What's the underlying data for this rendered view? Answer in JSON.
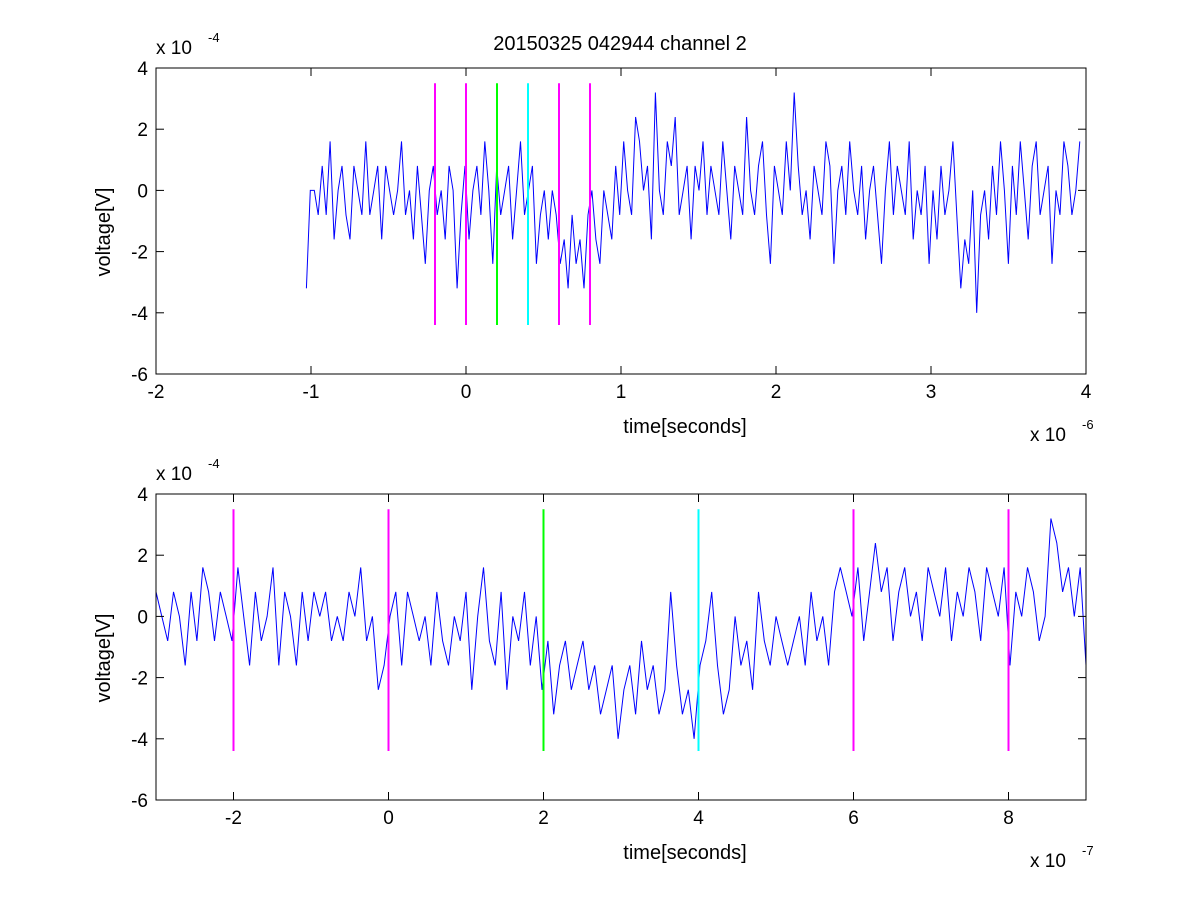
{
  "title": "20150325 042944 channel 2",
  "colors": {
    "signal": "#0000ff",
    "magenta": "#ff00ff",
    "green": "#00ff00",
    "cyan": "#00ffff",
    "axis": "#000000"
  },
  "chart_data": [
    {
      "type": "line",
      "title": "20150325 042944 channel 2",
      "xlabel": "time[seconds]",
      "ylabel": "voltage[V]",
      "x_multiplier_base": "x 10",
      "x_multiplier_exp": "-6",
      "y_multiplier_base": "x 10",
      "y_multiplier_exp": "-4",
      "xlim": [
        -2,
        4
      ],
      "ylim": [
        -6,
        4
      ],
      "xticks": [
        -2,
        -1,
        0,
        1,
        2,
        3,
        4
      ],
      "yticks": [
        -6,
        -4,
        -2,
        0,
        2,
        4
      ],
      "grid": false,
      "signal_xrange": [
        -1.03,
        3.96
      ],
      "signal_y_samples": [
        -3.2,
        0,
        0,
        -0.8,
        0.8,
        -0.8,
        1.6,
        -1.6,
        0,
        0.8,
        -0.8,
        -1.6,
        0.8,
        0,
        -0.8,
        1.6,
        -0.8,
        0,
        0.8,
        -1.6,
        0.8,
        0,
        -0.8,
        0,
        1.6,
        -0.8,
        0,
        -1.6,
        0.8,
        -0.8,
        -2.4,
        0,
        0.8,
        -0.8,
        0,
        -1.6,
        0.8,
        0,
        -3.2,
        -0.8,
        0.8,
        -1.6,
        0,
        0.8,
        -0.8,
        1.6,
        0,
        -2.4,
        0.8,
        -0.8,
        0,
        0.8,
        -1.6,
        0,
        1.6,
        -0.8,
        0,
        0.8,
        -2.4,
        -0.8,
        0,
        -1.6,
        0,
        -0.8,
        -2.4,
        -1.6,
        -3.2,
        -0.8,
        -2.4,
        -1.6,
        -3.2,
        -0.8,
        0,
        -1.6,
        -2.4,
        0,
        -0.8,
        -1.6,
        0.8,
        -0.8,
        1.6,
        0,
        -0.8,
        2.4,
        1.6,
        0,
        0.8,
        -1.6,
        3.2,
        0,
        -0.8,
        1.6,
        0.8,
        2.4,
        -0.8,
        0,
        0.8,
        -1.6,
        0.8,
        0,
        1.6,
        -0.8,
        0.8,
        0,
        -0.8,
        1.6,
        0,
        -1.6,
        0.8,
        0,
        -0.8,
        2.4,
        0,
        -0.8,
        0.8,
        1.6,
        -0.8,
        -2.4,
        0.8,
        0,
        -0.8,
        1.6,
        0,
        3.2,
        0.8,
        -0.8,
        0,
        -1.6,
        0.8,
        0,
        -0.8,
        1.6,
        0.8,
        -2.4,
        0,
        0.8,
        -0.8,
        1.6,
        0,
        -0.8,
        0.8,
        -1.6,
        0,
        0.8,
        -0.8,
        -2.4,
        0,
        1.6,
        -0.8,
        0.8,
        0,
        -0.8,
        1.6,
        -1.6,
        0,
        -0.8,
        0.8,
        -2.4,
        0,
        -1.6,
        0.8,
        -0.8,
        0,
        1.6,
        -0.8,
        -3.2,
        -1.6,
        -2.4,
        0,
        -4,
        -0.8,
        0,
        -1.6,
        0.8,
        -0.8,
        1.6,
        0,
        -2.4,
        0.8,
        -0.8,
        1.6,
        0,
        -1.6,
        0.8,
        1.6,
        -0.8,
        0,
        0.8,
        -2.4,
        0,
        -0.8,
        1.6,
        0.8,
        -0.8,
        0,
        1.6
      ],
      "vertical_markers": [
        {
          "x": -0.2,
          "color": "#ff00ff",
          "ymin": -4.4,
          "ymax": 3.5
        },
        {
          "x": 0.0,
          "color": "#ff00ff",
          "ymin": -4.4,
          "ymax": 3.5
        },
        {
          "x": 0.2,
          "color": "#00ff00",
          "ymin": -4.4,
          "ymax": 3.5
        },
        {
          "x": 0.4,
          "color": "#00ffff",
          "ymin": -4.4,
          "ymax": 3.5
        },
        {
          "x": 0.6,
          "color": "#ff00ff",
          "ymin": -4.4,
          "ymax": 3.5
        },
        {
          "x": 0.8,
          "color": "#ff00ff",
          "ymin": -4.4,
          "ymax": 3.5
        }
      ]
    },
    {
      "type": "line",
      "xlabel": "time[seconds]",
      "ylabel": "voltage[V]",
      "x_multiplier_base": "x 10",
      "x_multiplier_exp": "-7",
      "y_multiplier_base": "x 10",
      "y_multiplier_exp": "-4",
      "xlim": [
        -3,
        9
      ],
      "ylim": [
        -6,
        4
      ],
      "xticks": [
        -2,
        0,
        2,
        4,
        6,
        8
      ],
      "yticks": [
        -6,
        -4,
        -2,
        0,
        2,
        4
      ],
      "grid": false,
      "signal_xrange": [
        -3,
        9
      ],
      "signal_y_samples": [
        0.8,
        0,
        -0.8,
        0.8,
        0,
        -1.6,
        0.8,
        -0.8,
        1.6,
        0.8,
        -0.8,
        0.8,
        0,
        -0.8,
        1.6,
        0,
        -1.6,
        0.8,
        -0.8,
        0,
        1.6,
        -1.6,
        0.8,
        0,
        -1.6,
        0.8,
        -0.8,
        0.8,
        0,
        0.8,
        -0.8,
        0,
        -0.8,
        0.8,
        0,
        1.6,
        -0.8,
        0,
        -2.4,
        -1.6,
        0,
        0.8,
        -1.6,
        0.8,
        0,
        -0.8,
        0,
        -1.6,
        0.8,
        -0.8,
        -1.6,
        0,
        -0.8,
        0.8,
        -2.4,
        0,
        1.6,
        -0.8,
        -1.6,
        0.8,
        -2.4,
        0,
        -0.8,
        0.8,
        -1.6,
        0,
        -2.4,
        -0.8,
        -3.2,
        -1.6,
        -0.8,
        -2.4,
        -1.6,
        -0.8,
        -2.4,
        -1.6,
        -3.2,
        -2.4,
        -1.6,
        -4,
        -2.4,
        -1.6,
        -3.2,
        -0.8,
        -2.4,
        -1.6,
        -3.2,
        -2.4,
        0.8,
        -1.6,
        -3.2,
        -2.4,
        -4,
        -1.6,
        -0.8,
        0.8,
        -1.6,
        -3.2,
        -2.4,
        0,
        -1.6,
        -0.8,
        -2.4,
        0.8,
        -0.8,
        -1.6,
        0,
        -0.8,
        -1.6,
        -0.8,
        0,
        -1.6,
        0.8,
        -0.8,
        0,
        -1.6,
        0.8,
        1.6,
        0.8,
        0,
        1.6,
        -0.8,
        0.8,
        2.4,
        0.8,
        1.6,
        -0.8,
        0.8,
        1.6,
        0,
        0.8,
        -0.8,
        1.6,
        0.8,
        0,
        1.6,
        -0.8,
        0.8,
        0,
        1.6,
        0.8,
        -0.8,
        1.6,
        0.8,
        0,
        1.6,
        -1.6,
        0.8,
        0,
        1.6,
        0.8,
        -0.8,
        0,
        3.2,
        2.4,
        0.8,
        1.6,
        0,
        1.6,
        -1.6
      ],
      "vertical_markers": [
        {
          "x": -2,
          "color": "#ff00ff",
          "ymin": -4.4,
          "ymax": 3.5
        },
        {
          "x": 0,
          "color": "#ff00ff",
          "ymin": -4.4,
          "ymax": 3.5
        },
        {
          "x": 2,
          "color": "#00ff00",
          "ymin": -4.4,
          "ymax": 3.5
        },
        {
          "x": 4,
          "color": "#00ffff",
          "ymin": -4.4,
          "ymax": 3.5
        },
        {
          "x": 6,
          "color": "#ff00ff",
          "ymin": -4.4,
          "ymax": 3.5
        },
        {
          "x": 8,
          "color": "#ff00ff",
          "ymin": -4.4,
          "ymax": 3.5
        }
      ]
    }
  ]
}
